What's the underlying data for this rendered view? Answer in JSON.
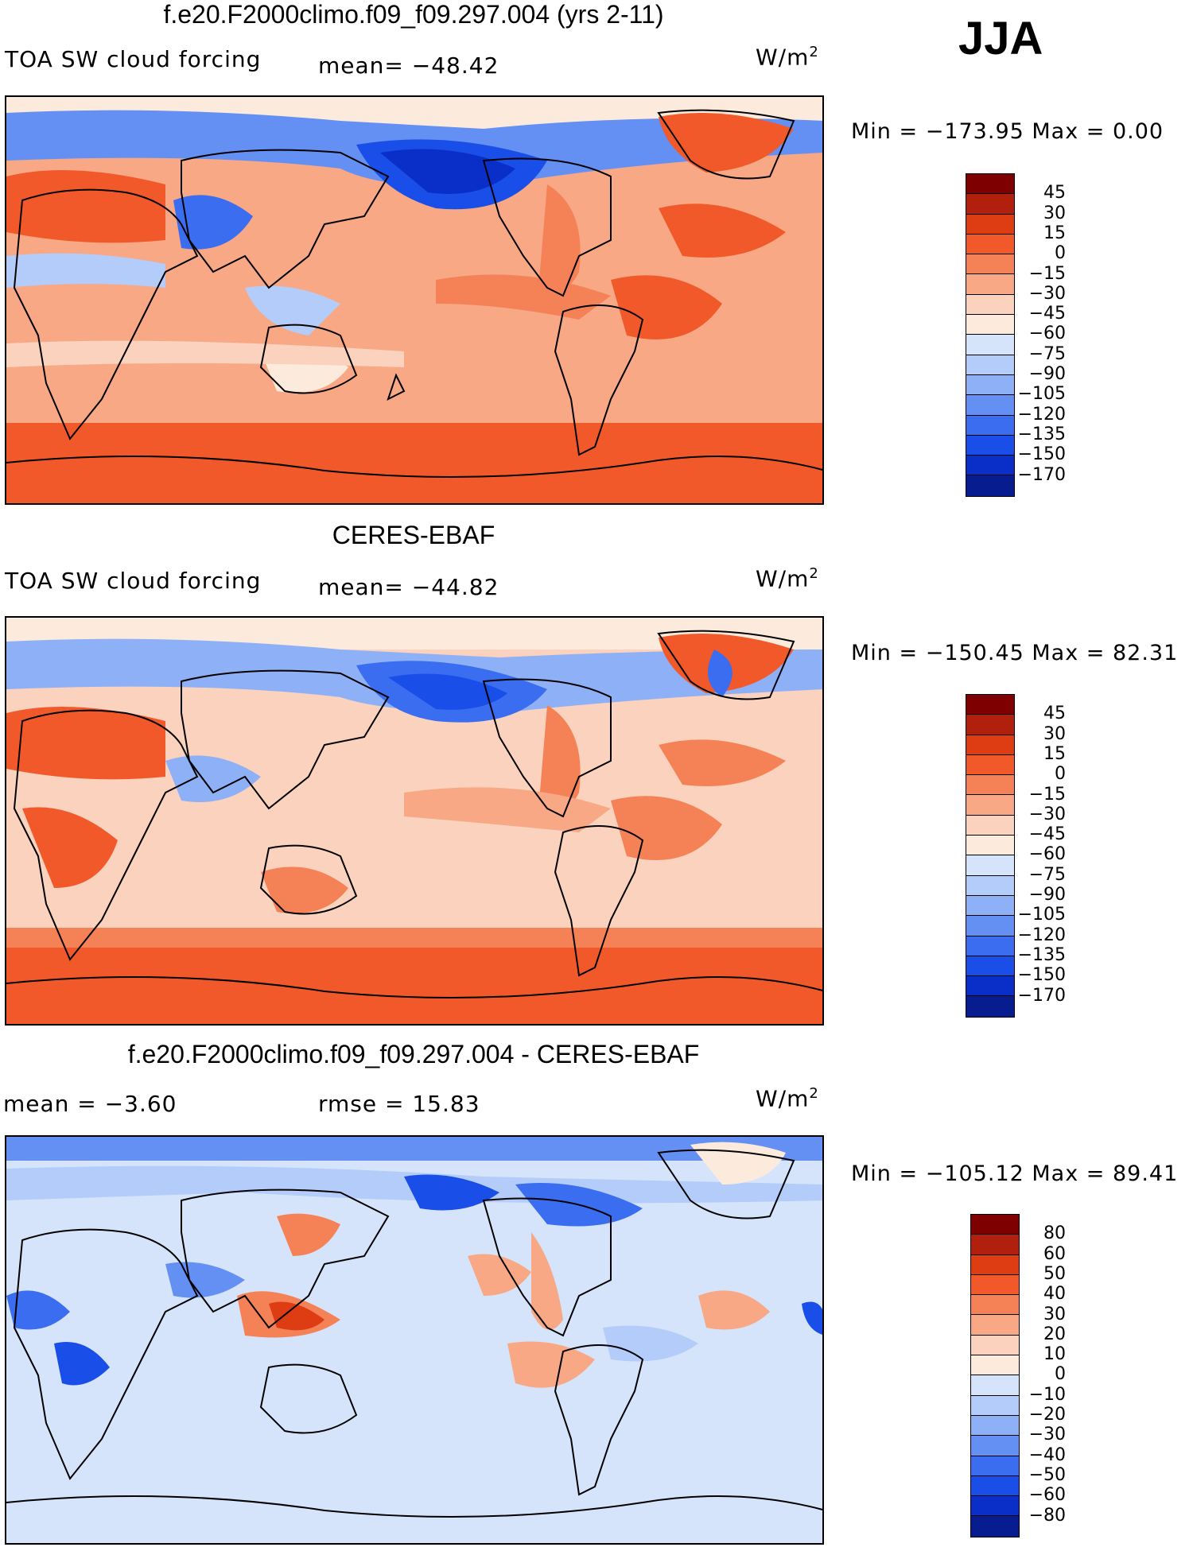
{
  "season": "JJA",
  "units_prefix": "W/m",
  "units_sup": "2",
  "panels": [
    {
      "id": "model",
      "title": "f.e20.F2000climo.f09_f09.297.004 (yrs 2-11)",
      "left_label": "TOA SW cloud forcing",
      "stat1": "mean=  −48.42",
      "stat2": "",
      "min_max": "Min  =  −173.95  Max  =     0.00",
      "colorbar_labels": [
        "45",
        "30",
        "15",
        "0",
        "−15",
        "−30",
        "−45",
        "−60",
        "−75",
        "−90",
        "−105",
        "−120",
        "−135",
        "−150",
        "−170"
      ]
    },
    {
      "id": "obs",
      "title": "CERES-EBAF",
      "left_label": "TOA SW cloud forcing",
      "stat1": "mean=  −44.82",
      "stat2": "",
      "min_max": "Min  =  −150.45  Max  =   82.31",
      "colorbar_labels": [
        "45",
        "30",
        "15",
        "0",
        "−15",
        "−30",
        "−45",
        "−60",
        "−75",
        "−90",
        "−105",
        "−120",
        "−135",
        "−150",
        "−170"
      ]
    },
    {
      "id": "diff",
      "title": "f.e20.F2000climo.f09_f09.297.004 - CERES-EBAF",
      "left_label": "mean  =    −3.60",
      "stat1": "rmse  =    15.83",
      "stat2": "",
      "min_max": "Min  =  −105.12  Max  =   89.41",
      "colorbar_labels": [
        "80",
        "60",
        "50",
        "40",
        "30",
        "20",
        "10",
        "0",
        "−10",
        "−20",
        "−30",
        "−40",
        "−50",
        "−60",
        "−80"
      ]
    }
  ],
  "colors": {
    "forcing_scale": [
      "#7f0000",
      "#b0200c",
      "#de3d14",
      "#f2592a",
      "#f58257",
      "#f8a885",
      "#fbd2bd",
      "#fcebdc",
      "#d6e4fb",
      "#b3ccfa",
      "#8eb0f7",
      "#6490f3",
      "#3a6df0",
      "#1a4ee8",
      "#0a2fc9",
      "#071c8f"
    ],
    "diff_scale": [
      "#7f0000",
      "#b0200c",
      "#de3d14",
      "#f2592a",
      "#f58257",
      "#f8a885",
      "#fbd2bd",
      "#fcebdc",
      "#d6e4fb",
      "#b3ccfa",
      "#8eb0f7",
      "#6490f3",
      "#3a6df0",
      "#1a4ee8",
      "#0a2fc9",
      "#071c8f"
    ]
  }
}
